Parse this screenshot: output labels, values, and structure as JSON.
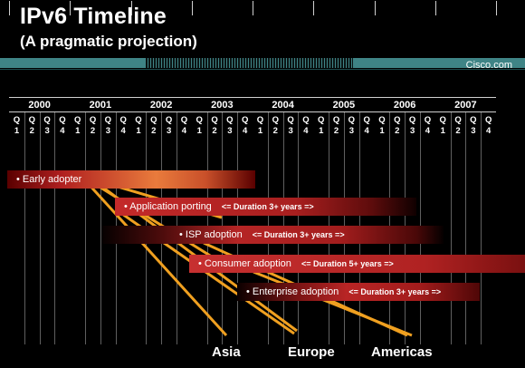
{
  "title": "IPv6 Timeline",
  "subtitle": "(A pragmatic projection)",
  "brand": "Cisco.com",
  "years": [
    "2000",
    "2001",
    "2002",
    "2003",
    "2004",
    "2005",
    "2006",
    "2007"
  ],
  "quarter_prefix": "Q",
  "quarters": [
    "1",
    "2",
    "3",
    "4"
  ],
  "phases": [
    {
      "label": "• Early adopter",
      "duration": ""
    },
    {
      "label": "• Application porting",
      "duration": "<=   Duration 3+ years   =>"
    },
    {
      "label": "• ISP  adoption",
      "duration": "<= Duration 3+ years   =>"
    },
    {
      "label": "• Consumer adoption",
      "duration": "<=       Duration 5+ years       =>"
    },
    {
      "label": "• Enterprise adoption",
      "duration": "<= Duration 3+ years =>"
    }
  ],
  "regions": [
    "Asia",
    "Europe",
    "Americas"
  ],
  "colors": {
    "band": "#3f8486",
    "bar_red": "#b52525",
    "bar_orange": "#e97b3c",
    "line_orange": "#f0a020"
  }
}
